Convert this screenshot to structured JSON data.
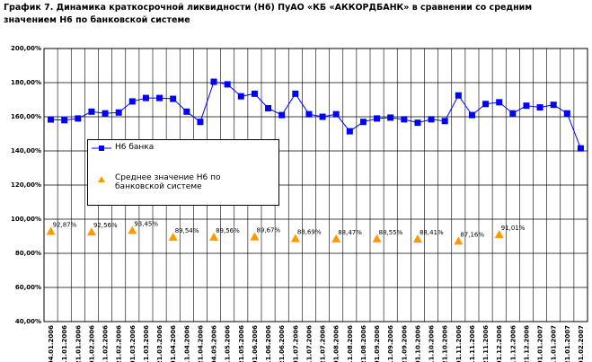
{
  "chart_data": {
    "type": "line",
    "title": "График 7. Динамика краткосрочной ликвидности (Н6) ПуАО «КБ «АККОРДБАНК» в сравнении со средним значением Н6 по банковской системе",
    "categories": [
      "04.01.2006",
      "11.01.2006",
      "21.01.2006",
      "01.02.2006",
      "11.02.2006",
      "21.02.2006",
      "01.03.2006",
      "11.03.2006",
      "21.03.2006",
      "01.04.2006",
      "11.04.2006",
      "21.04.2006",
      "04.05.2006",
      "11.05.2006",
      "21.05.2006",
      "01.06.2006",
      "11.06.2006",
      "21.06.2006",
      "01.07.2006",
      "11.07.2006",
      "21.07.2006",
      "01.08.2006",
      "11.08.2006",
      "21.08.2006",
      "01.09.2006",
      "11.09.2006",
      "21.09.2006",
      "01.10.2006",
      "11.10.2006",
      "21.10.2006",
      "01.11.2006",
      "11.11.2006",
      "21.11.2006",
      "01.12.2006",
      "11.12.2006",
      "21.12.2006",
      "01.01.2007",
      "11.01.2007",
      "21.01.2007",
      "01.02.2007"
    ],
    "series": [
      {
        "name": "Н6 банка",
        "color": "#0000ff",
        "marker": "square",
        "values": [
          158.4,
          158,
          159,
          163,
          162,
          162.5,
          169,
          171,
          171,
          170.5,
          163,
          157,
          180.5,
          179,
          172,
          173.5,
          165,
          161,
          173.5,
          161.5,
          160,
          161.5,
          151.5,
          157,
          159,
          159.5,
          158.5,
          156.5,
          158.5,
          157.5,
          172.5,
          161,
          167.5,
          168.5,
          162,
          166.5,
          165.5,
          167,
          162,
          141.5
        ]
      },
      {
        "name": "Среднее значение Н6 по банковской системе",
        "color": "#ff9900",
        "marker": "triangle",
        "values": [
          92.87,
          null,
          null,
          92.56,
          null,
          null,
          93.45,
          null,
          null,
          89.54,
          null,
          null,
          89.56,
          null,
          null,
          89.67,
          null,
          null,
          88.69,
          null,
          null,
          88.47,
          null,
          null,
          88.55,
          null,
          null,
          88.41,
          null,
          null,
          87.16,
          null,
          null,
          91.01,
          null,
          null,
          null,
          null,
          null,
          null
        ],
        "value_labels": [
          "92,87%",
          null,
          null,
          "92,56%",
          null,
          null,
          "93,45%",
          null,
          null,
          "89,54%",
          null,
          null,
          "89,56%",
          null,
          null,
          "89,67%",
          null,
          null,
          "88,69%",
          null,
          null,
          "88,47%",
          null,
          null,
          "88,55%",
          null,
          null,
          "88,41%",
          null,
          null,
          "87,16%",
          null,
          null,
          "91,01%",
          null,
          null,
          null,
          null,
          null,
          null
        ]
      }
    ],
    "ylim": [
      40,
      200
    ],
    "yticks": [
      {
        "value": 40,
        "label": "40,00%"
      },
      {
        "value": 60,
        "label": "60,00%"
      },
      {
        "value": 80,
        "label": "80,00%"
      },
      {
        "value": 100,
        "label": "100,00%"
      },
      {
        "value": 120,
        "label": "120,00%"
      },
      {
        "value": 140,
        "label": "140,00%"
      },
      {
        "value": 160,
        "label": "160,00%"
      },
      {
        "value": 180,
        "label": "180,00%"
      },
      {
        "value": 200,
        "label": "200,00%"
      }
    ],
    "grid": true
  }
}
